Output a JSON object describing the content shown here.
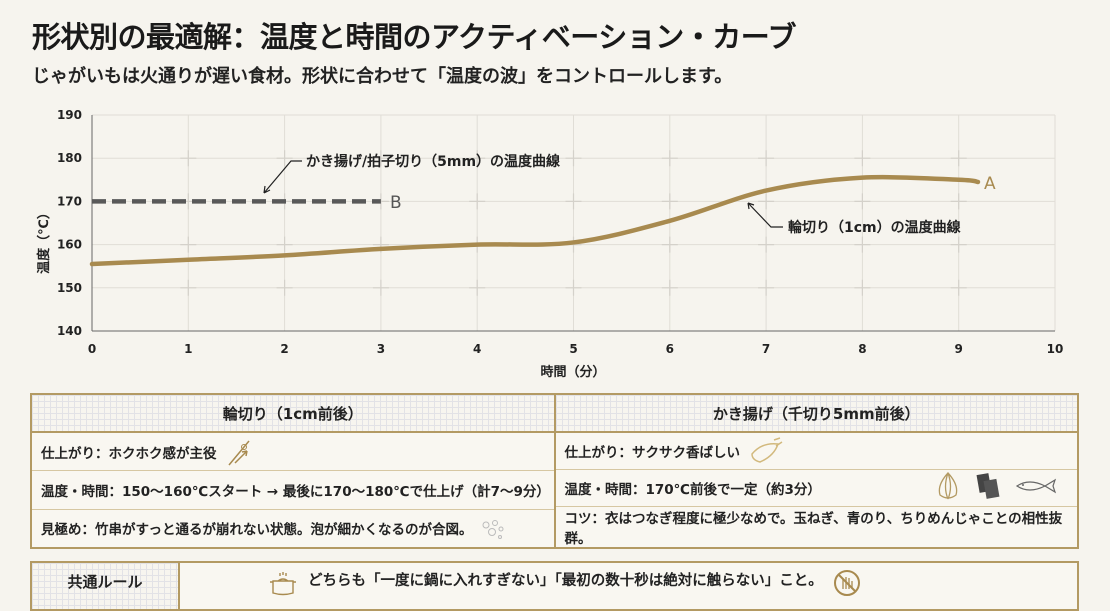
{
  "title": "形状別の最適解：温度と時間のアクティベーション・カーブ",
  "subtitle": "じゃがいもは火通りが遅い食材。形状に合わせて「温度の波」をコントロールします。",
  "chart_data": {
    "type": "line",
    "xlabel": "時間（分）",
    "ylabel": "温度（℃）",
    "xlim": [
      0,
      10
    ],
    "ylim": [
      140,
      190
    ],
    "xticks": [
      "0",
      "1",
      "2",
      "3",
      "4",
      "5",
      "6",
      "7",
      "8",
      "9",
      "10"
    ],
    "yticks": [
      "140",
      "150",
      "160",
      "170",
      "180",
      "190"
    ],
    "grid": true,
    "series": [
      {
        "name": "A",
        "label": "輪切り（1cm）の温度曲線",
        "color": "#a88a4f",
        "style": "solid",
        "x": [
          0,
          1,
          2,
          3,
          4,
          5,
          6,
          7,
          8,
          9,
          9.2
        ],
        "y": [
          155.5,
          156.5,
          157.5,
          159,
          160,
          160.5,
          165.5,
          172.5,
          175.5,
          175,
          174.5
        ]
      },
      {
        "name": "B",
        "label": "かき揚げ/拍子切り（5mm）の温度曲線",
        "color": "#595959",
        "style": "dashed",
        "x": [
          0,
          3
        ],
        "y": [
          170,
          170
        ]
      }
    ]
  },
  "table": {
    "columns": [
      {
        "header": "輪切り（1cm前後）",
        "rows": [
          "仕上がり：ホクホク感が主役",
          "温度・時間：150〜160℃スタート → 最後に170〜180℃で仕上げ（計7〜9分）",
          "見極め：竹串がすっと通るが崩れない状態。泡が細かくなるのが合図。"
        ],
        "icons": [
          "skewer-icon",
          "",
          "bubbles-icon"
        ]
      },
      {
        "header": "かき揚げ（千切り5mm前後）",
        "rows": [
          "仕上がり：サクサク香ばしい",
          "温度・時間：170℃前後で一定（約3分）",
          "コツ：衣はつなぎ程度に極少なめで。玉ねぎ、青のり、ちりめんじゃことの相性抜群。"
        ],
        "icons": [
          "tempura-icon",
          "onion-icon nori-icon fish-icon",
          ""
        ]
      }
    ]
  },
  "rule": {
    "label": "共通ルール",
    "text": "どちらも「一度に鍋に入れすぎない」「最初の数十秒は絶対に触らない」こと。",
    "icons": [
      "pot-icon",
      "no-touch-icon"
    ]
  },
  "colors": {
    "accent": "#a88a4f",
    "border": "#b39a63",
    "dashed": "#595959",
    "background": "#f6f4ee"
  }
}
